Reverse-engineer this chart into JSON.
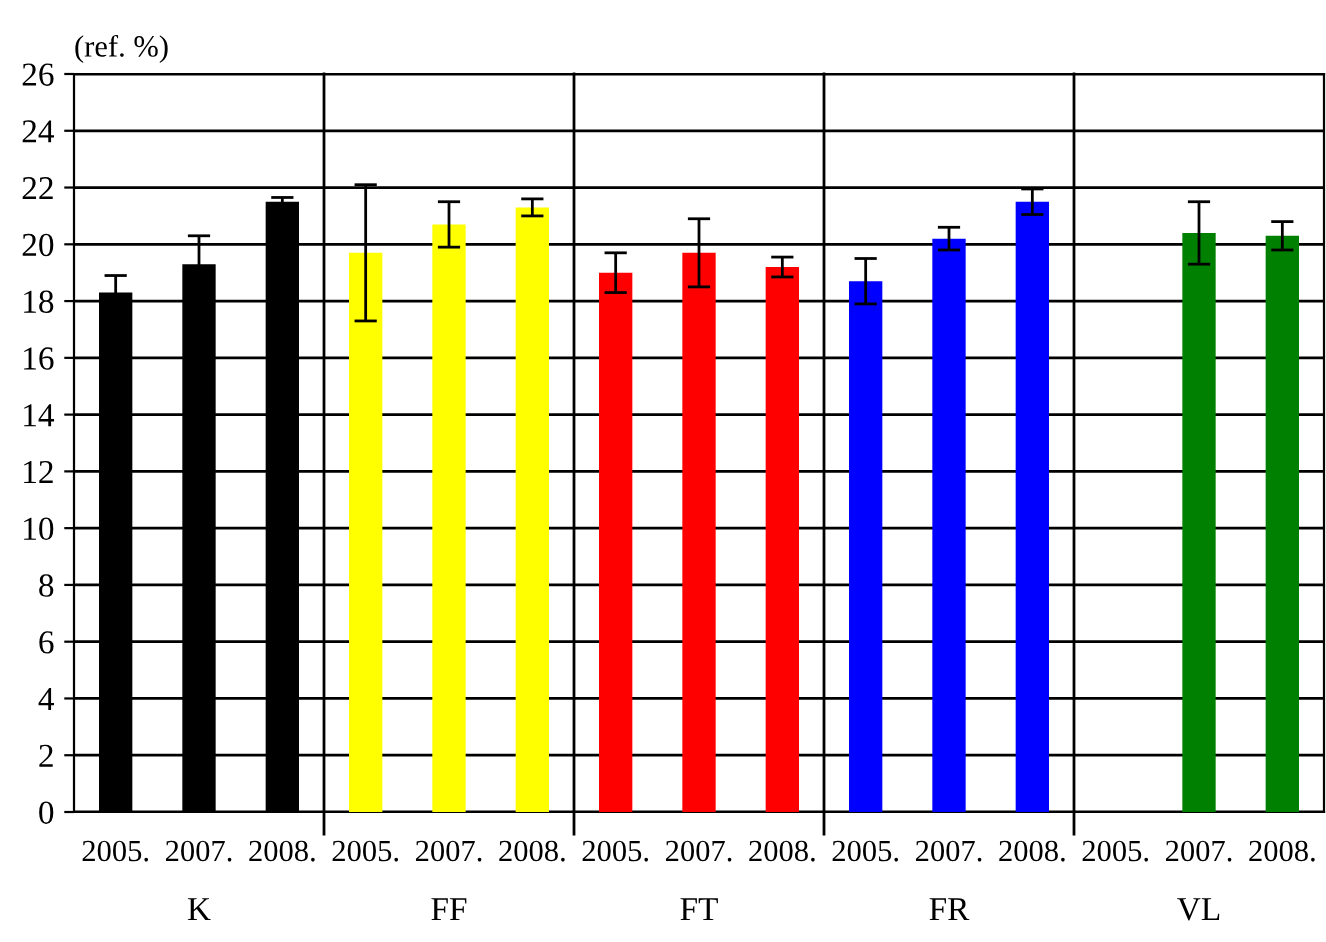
{
  "chart_data": {
    "type": "bar",
    "ylabel": "(ref. %)",
    "categories": [
      "2005.",
      "2007.",
      "2008.",
      "2005.",
      "2007.",
      "2008.",
      "2005.",
      "2007.",
      "2008.",
      "2005.",
      "2007.",
      "2008.",
      "2005.",
      "2007.",
      "2008."
    ],
    "values": [
      18.3,
      19.3,
      21.5,
      19.7,
      20.7,
      21.3,
      19.0,
      19.7,
      19.2,
      18.7,
      20.2,
      21.5,
      0,
      20.4,
      20.3
    ],
    "errors": [
      0.6,
      1.0,
      0.15,
      2.4,
      0.8,
      0.3,
      0.7,
      1.2,
      0.35,
      0.8,
      0.4,
      0.45,
      null,
      1.1,
      0.5
    ],
    "colors": [
      "#000000",
      "#000000",
      "#000000",
      "#ffff00",
      "#ffff00",
      "#ffff00",
      "#ff0000",
      "#ff0000",
      "#ff0000",
      "#0000ff",
      "#0000ff",
      "#0000ff",
      "#008000",
      "#008000",
      "#008000"
    ],
    "annotations": [
      "K",
      "FF",
      "FT",
      "FR",
      "VL"
    ],
    "ylim": [
      0,
      26
    ],
    "yticks": [
      0,
      2,
      4,
      6,
      8,
      10,
      12,
      14,
      16,
      18,
      20,
      22,
      24,
      26
    ],
    "grid": "y"
  }
}
